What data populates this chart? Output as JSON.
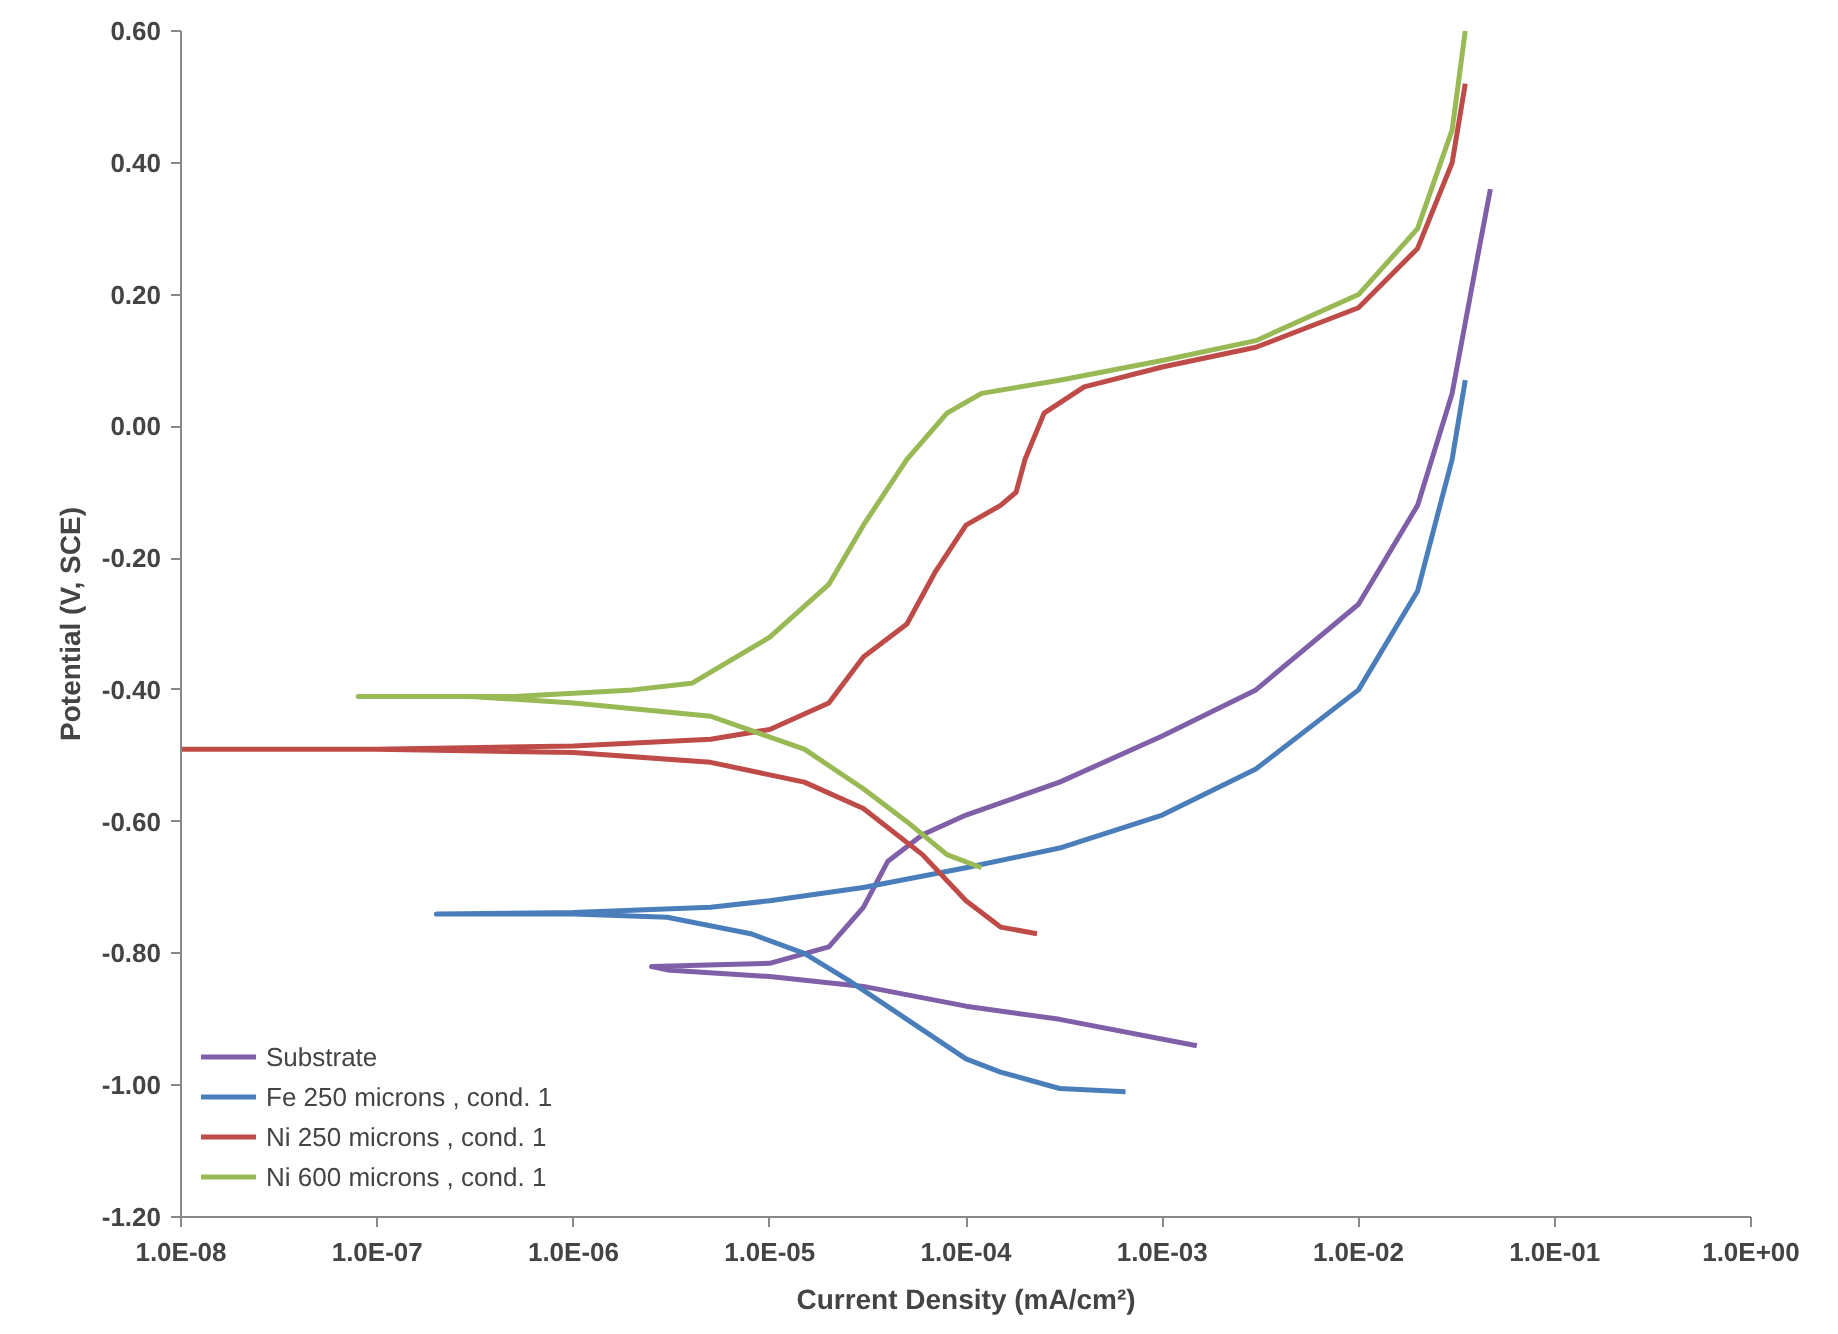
{
  "chart_data": {
    "type": "line",
    "xlabel": "Current Density (mA/cm²)",
    "ylabel": "Potential (V, SCE)",
    "log": "x",
    "grid": false,
    "legend": "bottom left",
    "marker": "none",
    "line_style": "solid",
    "xlim": [
      1e-08,
      1
    ],
    "ylim": [
      -1.2,
      0.6
    ],
    "xticks": [
      {
        "value": 1e-08,
        "label": "1.0E-08"
      },
      {
        "value": 1e-07,
        "label": "1.0E-07"
      },
      {
        "value": 1e-06,
        "label": "1.0E-06"
      },
      {
        "value": 1e-05,
        "label": "1.0E-05"
      },
      {
        "value": 0.0001,
        "label": "1.0E-04"
      },
      {
        "value": 0.001,
        "label": "1.0E-03"
      },
      {
        "value": 0.01,
        "label": "1.0E-02"
      },
      {
        "value": 0.1,
        "label": "1.0E-01"
      },
      {
        "value": 1,
        "label": "1.0E+00"
      }
    ],
    "yticks": [
      {
        "value": -1.2,
        "label": "-1.20"
      },
      {
        "value": -1.0,
        "label": "-1.00"
      },
      {
        "value": -0.8,
        "label": "-0.80"
      },
      {
        "value": -0.6,
        "label": "-0.60"
      },
      {
        "value": -0.4,
        "label": "-0.40"
      },
      {
        "value": -0.2,
        "label": "-0.20"
      },
      {
        "value": 0,
        "label": "0.00"
      },
      {
        "value": 0.2,
        "label": "0.20"
      },
      {
        "value": 0.4,
        "label": "0.40"
      },
      {
        "value": 0.6,
        "label": "0.60"
      }
    ],
    "series": [
      {
        "name": "Substrate",
        "color": "#7f5fa8",
        "x": [
          0.0015,
          0.0003,
          0.0001,
          3e-05,
          1e-05,
          3e-06,
          2.5e-06,
          1e-05,
          2e-05,
          3e-05,
          4e-05,
          6e-05,
          0.0001,
          0.0003,
          0.001,
          0.003,
          0.01,
          0.02,
          0.03,
          0.04,
          0.047
        ],
        "values": [
          -0.94,
          -0.9,
          -0.88,
          -0.85,
          -0.835,
          -0.825,
          -0.82,
          -0.815,
          -0.79,
          -0.73,
          -0.66,
          -0.62,
          -0.59,
          -0.54,
          -0.47,
          -0.4,
          -0.27,
          -0.12,
          0.05,
          0.25,
          0.36
        ]
      },
      {
        "name": "Fe 250 microns , cond. 1",
        "color": "#4a7ebb",
        "x": [
          0.00065,
          0.0003,
          0.00015,
          0.0001,
          5e-05,
          2.5e-05,
          1.5e-05,
          8e-06,
          3e-06,
          1e-06,
          2e-07,
          1e-06,
          5e-06,
          1e-05,
          3e-05,
          0.0001,
          0.0003,
          0.001,
          0.003,
          0.01,
          0.02,
          0.03,
          0.035
        ],
        "values": [
          -1.01,
          -1.005,
          -0.98,
          -0.96,
          -0.9,
          -0.84,
          -0.8,
          -0.77,
          -0.745,
          -0.74,
          -0.74,
          -0.738,
          -0.73,
          -0.72,
          -0.7,
          -0.67,
          -0.64,
          -0.59,
          -0.52,
          -0.4,
          -0.25,
          -0.05,
          0.07
        ]
      },
      {
        "name": "Ni 250 microns , cond. 1",
        "color": "#be4b48",
        "x": [
          0.00023,
          0.00015,
          0.0001,
          6e-05,
          3e-05,
          1.5e-05,
          5e-06,
          1e-06,
          1e-07,
          1e-08,
          1e-07,
          1e-06,
          5e-06,
          1e-05,
          2e-05,
          3e-05,
          5e-05,
          7e-05,
          0.0001,
          0.00015,
          0.00018,
          0.0002,
          0.00025,
          0.0004,
          0.001,
          0.003,
          0.01,
          0.02,
          0.03,
          0.035
        ],
        "values": [
          -0.77,
          -0.76,
          -0.72,
          -0.65,
          -0.58,
          -0.54,
          -0.51,
          -0.495,
          -0.49,
          -0.49,
          -0.49,
          -0.485,
          -0.475,
          -0.46,
          -0.42,
          -0.35,
          -0.3,
          -0.22,
          -0.15,
          -0.12,
          -0.1,
          -0.05,
          0.02,
          0.06,
          0.09,
          0.12,
          0.18,
          0.27,
          0.4,
          0.52
        ]
      },
      {
        "name": "Ni 600 microns , cond. 1",
        "color": "#98b954",
        "x": [
          0.00012,
          8e-05,
          5e-05,
          3e-05,
          1.5e-05,
          5e-06,
          1e-06,
          3e-07,
          8e-08,
          5e-07,
          2e-06,
          4e-06,
          1e-05,
          2e-05,
          3e-05,
          5e-05,
          8e-05,
          0.00012,
          0.0003,
          0.001,
          0.003,
          0.01,
          0.02,
          0.03,
          0.035
        ],
        "values": [
          -0.67,
          -0.65,
          -0.6,
          -0.55,
          -0.49,
          -0.44,
          -0.42,
          -0.41,
          -0.41,
          -0.41,
          -0.4,
          -0.39,
          -0.32,
          -0.24,
          -0.15,
          -0.05,
          0.02,
          0.05,
          0.07,
          0.1,
          0.13,
          0.2,
          0.3,
          0.45,
          0.6
        ]
      }
    ]
  }
}
